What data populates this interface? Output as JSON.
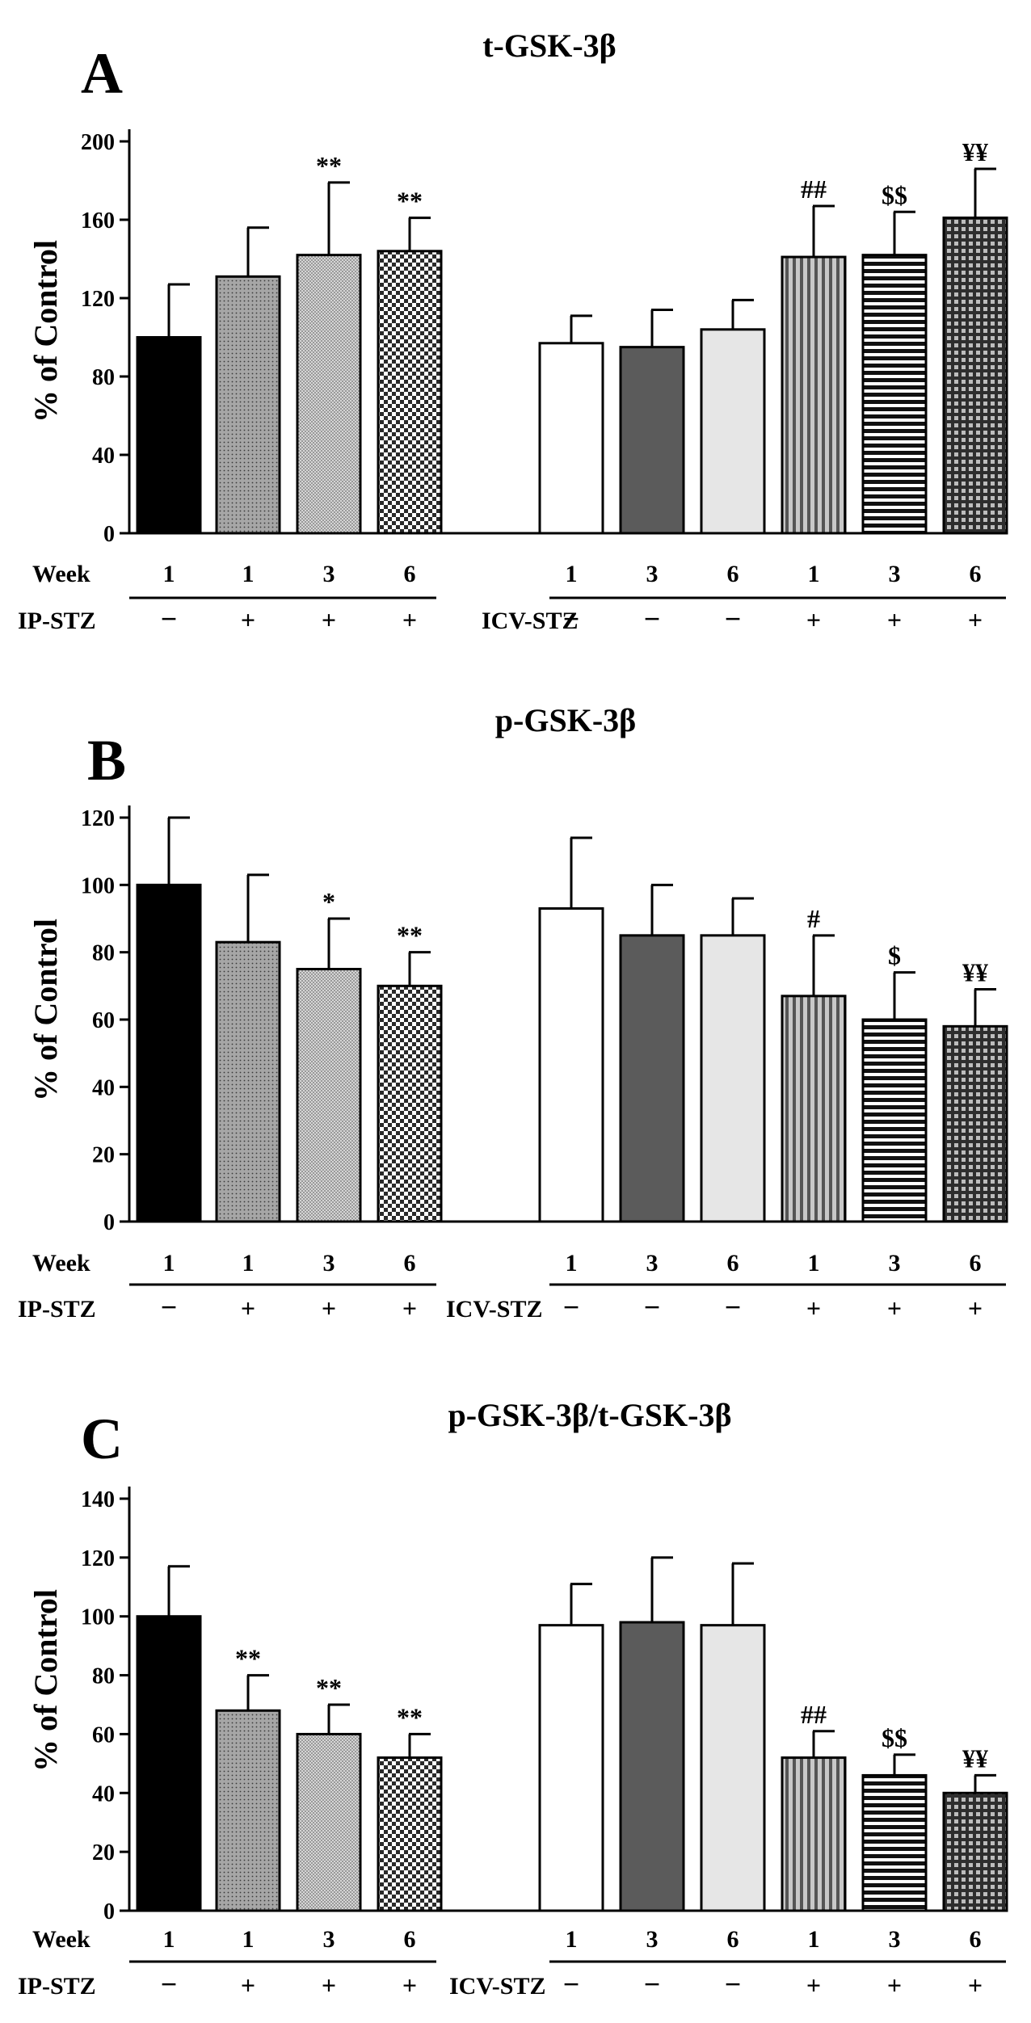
{
  "chart_data": [
    {
      "type": "bar",
      "panel_label": "A",
      "title": "t-GSK-3β",
      "ylabel": "% of Control",
      "ylim": [
        0,
        200
      ],
      "yticks": [
        0,
        40,
        80,
        120,
        160,
        200
      ],
      "week_label": "Week",
      "ip_label": "IP-STZ",
      "icv_label": "ICV-STZ",
      "bars": [
        {
          "group": "IP",
          "week": "1",
          "treatment": "−",
          "value": 100,
          "error": 27,
          "annotation": "",
          "pattern": "solid-black"
        },
        {
          "group": "IP",
          "week": "1",
          "treatment": "+",
          "value": 131,
          "error": 25,
          "annotation": "",
          "pattern": "dots-gray"
        },
        {
          "group": "IP",
          "week": "3",
          "treatment": "+",
          "value": 142,
          "error": 37,
          "annotation": "**",
          "pattern": "fine-mesh"
        },
        {
          "group": "IP",
          "week": "6",
          "treatment": "+",
          "value": 144,
          "error": 17,
          "annotation": "**",
          "pattern": "checker"
        },
        {
          "group": "ICV",
          "week": "1",
          "treatment": "−",
          "value": 97,
          "error": 14,
          "annotation": "",
          "pattern": "white"
        },
        {
          "group": "ICV",
          "week": "3",
          "treatment": "−",
          "value": 95,
          "error": 19,
          "annotation": "",
          "pattern": "dark-gray"
        },
        {
          "group": "ICV",
          "week": "6",
          "treatment": "−",
          "value": 104,
          "error": 15,
          "annotation": "",
          "pattern": "light-gray"
        },
        {
          "group": "ICV",
          "week": "1",
          "treatment": "+",
          "value": 141,
          "error": 26,
          "annotation": "##",
          "pattern": "vertical-lines"
        },
        {
          "group": "ICV",
          "week": "3",
          "treatment": "+",
          "value": 142,
          "error": 22,
          "annotation": "$$",
          "pattern": "horizontal-lines"
        },
        {
          "group": "ICV",
          "week": "6",
          "treatment": "+",
          "value": 161,
          "error": 25,
          "annotation": "¥¥",
          "pattern": "grid"
        }
      ]
    },
    {
      "type": "bar",
      "panel_label": "B",
      "title": "p-GSK-3β",
      "ylabel": "% of Control",
      "ylim": [
        0,
        120
      ],
      "yticks": [
        0,
        20,
        40,
        60,
        80,
        100,
        120
      ],
      "week_label": "Week",
      "ip_label": "IP-STZ",
      "icv_label": "ICV-STZ",
      "bars": [
        {
          "group": "IP",
          "week": "1",
          "treatment": "−",
          "value": 100,
          "error": 20,
          "annotation": "",
          "pattern": "solid-black"
        },
        {
          "group": "IP",
          "week": "1",
          "treatment": "+",
          "value": 83,
          "error": 20,
          "annotation": "",
          "pattern": "dots-gray"
        },
        {
          "group": "IP",
          "week": "3",
          "treatment": "+",
          "value": 75,
          "error": 15,
          "annotation": "*",
          "pattern": "fine-mesh"
        },
        {
          "group": "IP",
          "week": "6",
          "treatment": "+",
          "value": 70,
          "error": 10,
          "annotation": "**",
          "pattern": "checker"
        },
        {
          "group": "ICV",
          "week": "1",
          "treatment": "−",
          "value": 93,
          "error": 21,
          "annotation": "",
          "pattern": "white"
        },
        {
          "group": "ICV",
          "week": "3",
          "treatment": "−",
          "value": 85,
          "error": 15,
          "annotation": "",
          "pattern": "dark-gray"
        },
        {
          "group": "ICV",
          "week": "6",
          "treatment": "−",
          "value": 85,
          "error": 11,
          "annotation": "",
          "pattern": "light-gray"
        },
        {
          "group": "ICV",
          "week": "1",
          "treatment": "+",
          "value": 67,
          "error": 18,
          "annotation": "#",
          "pattern": "vertical-lines"
        },
        {
          "group": "ICV",
          "week": "3",
          "treatment": "+",
          "value": 60,
          "error": 14,
          "annotation": "$",
          "pattern": "horizontal-lines"
        },
        {
          "group": "ICV",
          "week": "6",
          "treatment": "+",
          "value": 58,
          "error": 11,
          "annotation": "¥¥",
          "pattern": "grid"
        }
      ]
    },
    {
      "type": "bar",
      "panel_label": "C",
      "title": "p-GSK-3β/t-GSK-3β",
      "ylabel": "% of Control",
      "ylim": [
        0,
        140
      ],
      "yticks": [
        0,
        20,
        40,
        60,
        80,
        100,
        120,
        140
      ],
      "week_label": "Week",
      "ip_label": "IP-STZ",
      "icv_label": "ICV-STZ",
      "bars": [
        {
          "group": "IP",
          "week": "1",
          "treatment": "−",
          "value": 100,
          "error": 17,
          "annotation": "",
          "pattern": "solid-black"
        },
        {
          "group": "IP",
          "week": "1",
          "treatment": "+",
          "value": 68,
          "error": 12,
          "annotation": "**",
          "pattern": "dots-gray"
        },
        {
          "group": "IP",
          "week": "3",
          "treatment": "+",
          "value": 60,
          "error": 10,
          "annotation": "**",
          "pattern": "fine-mesh"
        },
        {
          "group": "IP",
          "week": "6",
          "treatment": "+",
          "value": 52,
          "error": 8,
          "annotation": "**",
          "pattern": "checker"
        },
        {
          "group": "ICV",
          "week": "1",
          "treatment": "−",
          "value": 97,
          "error": 14,
          "annotation": "",
          "pattern": "white"
        },
        {
          "group": "ICV",
          "week": "3",
          "treatment": "−",
          "value": 98,
          "error": 22,
          "annotation": "",
          "pattern": "dark-gray"
        },
        {
          "group": "ICV",
          "week": "6",
          "treatment": "−",
          "value": 97,
          "error": 21,
          "annotation": "",
          "pattern": "light-gray"
        },
        {
          "group": "ICV",
          "week": "1",
          "treatment": "+",
          "value": 52,
          "error": 9,
          "annotation": "##",
          "pattern": "vertical-lines"
        },
        {
          "group": "ICV",
          "week": "3",
          "treatment": "+",
          "value": 46,
          "error": 7,
          "annotation": "$$",
          "pattern": "horizontal-lines"
        },
        {
          "group": "ICV",
          "week": "6",
          "treatment": "+",
          "value": 40,
          "error": 6,
          "annotation": "¥¥",
          "pattern": "grid"
        }
      ]
    }
  ]
}
